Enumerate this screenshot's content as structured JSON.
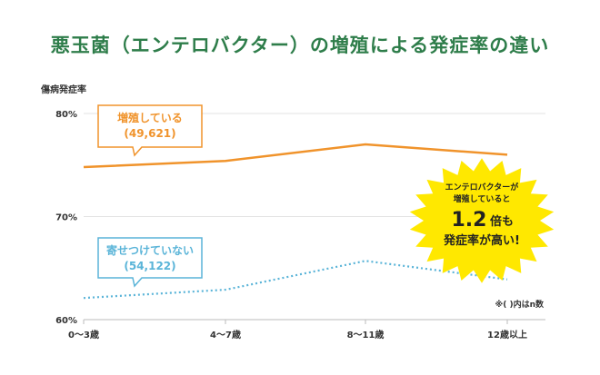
{
  "title": "悪玉菌（エンテロバクター）の増殖による発症率の違い",
  "chart_data": {
    "type": "line",
    "ylabel": "傷病発症率",
    "categories": [
      "0〜3歳",
      "4〜7歳",
      "8〜11歳",
      "12歳以上"
    ],
    "yticks": [
      "80%",
      "70%",
      "60%"
    ],
    "ylim": [
      60,
      80
    ],
    "grid": true,
    "series": [
      {
        "name": "増殖している",
        "count": "(49,621)",
        "color": "#f0932b",
        "style": "solid",
        "values": [
          74.8,
          75.4,
          77.0,
          76.0
        ]
      },
      {
        "name": "寄せつけていない",
        "count": "(54,122)",
        "color": "#5ab4d8",
        "style": "dotted",
        "values": [
          62.1,
          62.9,
          65.7,
          63.9
        ]
      }
    ],
    "annotation": {
      "line1": "エンテロバクターが",
      "line2": "増殖していると",
      "big": "1.2",
      "big_suffix": "倍も",
      "line3": "発症率が高い!",
      "color": "#ffe800"
    },
    "note": "※( )内はn数"
  }
}
